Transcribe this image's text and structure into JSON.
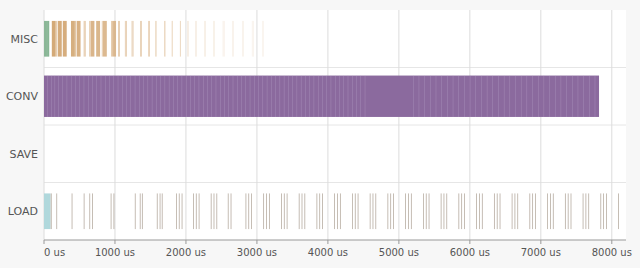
{
  "chart_data": {
    "type": "timeline",
    "orientation": "horizontal",
    "grid": true,
    "categories": [
      "MISC",
      "CONV",
      "SAVE",
      "LOAD"
    ],
    "xlim": [
      0,
      8200
    ],
    "xticks": [
      {
        "value": 0,
        "label": "0 us"
      },
      {
        "value": 1000,
        "label": "1000 us"
      },
      {
        "value": 2000,
        "label": "2000 us"
      },
      {
        "value": 3000,
        "label": "3000 us"
      },
      {
        "value": 4000,
        "label": "4000 us"
      },
      {
        "value": 5000,
        "label": "5000 us"
      },
      {
        "value": 6000,
        "label": "6000 us"
      },
      {
        "value": 7000,
        "label": "7000 us"
      },
      {
        "value": 8000,
        "label": "8000 us"
      }
    ],
    "series": [
      {
        "category": "MISC",
        "color": "#5c9b6e",
        "bars": [
          [
            2,
            8
          ],
          [
            11,
            8
          ],
          [
            20,
            8
          ],
          [
            29,
            8
          ],
          [
            38,
            8
          ],
          [
            47,
            8
          ],
          [
            56,
            8
          ],
          [
            65,
            8
          ]
        ]
      },
      {
        "category": "MISC",
        "color": "#d4aa78",
        "bars": [
          [
            110,
            55
          ],
          [
            175,
            10
          ],
          [
            195,
            55
          ],
          [
            265,
            55
          ],
          [
            380,
            55
          ],
          [
            440,
            10
          ],
          [
            460,
            55
          ],
          [
            560,
            10
          ],
          [
            575,
            10
          ],
          [
            640,
            10
          ],
          [
            655,
            55
          ],
          [
            735,
            55
          ],
          [
            815,
            10
          ],
          [
            830,
            55
          ],
          [
            945,
            10
          ],
          [
            960,
            55
          ],
          [
            1045,
            10
          ],
          [
            1060,
            10
          ],
          [
            1140,
            10
          ],
          [
            1155,
            10
          ],
          [
            1235,
            10
          ],
          [
            1250,
            10
          ],
          [
            1355,
            10
          ],
          [
            1370,
            10
          ],
          [
            1470,
            10
          ],
          [
            1480,
            10
          ],
          [
            1570,
            10
          ],
          [
            1580,
            5
          ],
          [
            1695,
            10
          ],
          [
            1705,
            5
          ],
          [
            1800,
            8
          ],
          [
            1810,
            5
          ],
          [
            1915,
            8
          ],
          [
            1925,
            5
          ],
          [
            2020,
            5
          ],
          [
            2030,
            5
          ],
          [
            2135,
            5
          ],
          [
            2145,
            5
          ],
          [
            2260,
            5
          ],
          [
            2275,
            5
          ],
          [
            2385,
            5
          ],
          [
            2400,
            5
          ],
          [
            2520,
            5
          ],
          [
            2535,
            5
          ],
          [
            2655,
            5
          ],
          [
            2670,
            5
          ],
          [
            2790,
            5
          ],
          [
            2805,
            5
          ],
          [
            2930,
            5
          ],
          [
            2945,
            5
          ],
          [
            3075,
            5
          ],
          [
            3090,
            5
          ]
        ]
      },
      {
        "category": "CONV",
        "color": "#8b6a9e",
        "bars": [
          [
            0,
            7820
          ]
        ]
      },
      {
        "category": "CONV",
        "color": "#c4b0d4",
        "bars": [
          [
            50,
            6
          ],
          [
            100,
            6
          ],
          [
            150,
            6
          ],
          [
            200,
            6
          ],
          [
            260,
            6
          ],
          [
            320,
            6
          ],
          [
            380,
            6
          ],
          [
            440,
            6
          ],
          [
            500,
            6
          ],
          [
            560,
            6
          ],
          [
            620,
            6
          ],
          [
            680,
            6
          ],
          [
            740,
            6
          ],
          [
            800,
            6
          ],
          [
            860,
            6
          ],
          [
            920,
            6
          ],
          [
            980,
            6
          ],
          [
            1040,
            6
          ],
          [
            1100,
            6
          ],
          [
            1160,
            6
          ],
          [
            1220,
            6
          ],
          [
            1280,
            6
          ],
          [
            1340,
            6
          ],
          [
            1400,
            6
          ],
          [
            1460,
            6
          ],
          [
            1520,
            6
          ],
          [
            1580,
            6
          ],
          [
            1640,
            6
          ],
          [
            1700,
            6
          ],
          [
            1760,
            6
          ],
          [
            1820,
            6
          ],
          [
            1880,
            6
          ],
          [
            1940,
            6
          ],
          [
            2000,
            6
          ],
          [
            2060,
            6
          ],
          [
            2120,
            6
          ],
          [
            2180,
            6
          ],
          [
            2240,
            6
          ],
          [
            2300,
            6
          ],
          [
            2360,
            6
          ],
          [
            2420,
            6
          ],
          [
            2480,
            6
          ],
          [
            2540,
            6
          ],
          [
            2600,
            6
          ],
          [
            2660,
            6
          ],
          [
            2720,
            6
          ],
          [
            2780,
            6
          ],
          [
            2840,
            6
          ],
          [
            2900,
            6
          ],
          [
            2960,
            6
          ],
          [
            3020,
            6
          ],
          [
            3080,
            6
          ],
          [
            3140,
            6
          ],
          [
            3200,
            6
          ],
          [
            3260,
            6
          ],
          [
            3320,
            6
          ],
          [
            3380,
            6
          ],
          [
            3440,
            6
          ],
          [
            3500,
            6
          ],
          [
            3560,
            6
          ],
          [
            3620,
            6
          ],
          [
            3680,
            6
          ],
          [
            3740,
            6
          ],
          [
            3800,
            6
          ],
          [
            3860,
            6
          ],
          [
            3920,
            6
          ],
          [
            3980,
            6
          ],
          [
            4040,
            6
          ],
          [
            4100,
            6
          ],
          [
            4160,
            6
          ],
          [
            4220,
            6
          ],
          [
            4280,
            6
          ],
          [
            4340,
            6
          ],
          [
            4400,
            6
          ],
          [
            4460,
            6
          ],
          [
            4520,
            6
          ],
          [
            5200,
            6
          ],
          [
            5280,
            6
          ],
          [
            5360,
            6
          ],
          [
            5440,
            6
          ],
          [
            5520,
            6
          ],
          [
            5600,
            6
          ],
          [
            5680,
            6
          ],
          [
            5760,
            6
          ],
          [
            5840,
            6
          ],
          [
            5920,
            6
          ],
          [
            6000,
            6
          ],
          [
            6080,
            6
          ],
          [
            6160,
            6
          ],
          [
            6240,
            6
          ],
          [
            6320,
            6
          ],
          [
            6400,
            6
          ],
          [
            6480,
            6
          ],
          [
            6560,
            6
          ],
          [
            6640,
            6
          ],
          [
            6720,
            6
          ],
          [
            6800,
            6
          ],
          [
            6880,
            6
          ],
          [
            6960,
            6
          ],
          [
            7040,
            6
          ],
          [
            7120,
            6
          ],
          [
            7200,
            6
          ],
          [
            7280,
            6
          ],
          [
            7360,
            6
          ],
          [
            7440,
            6
          ],
          [
            7520,
            6
          ],
          [
            7600,
            6
          ],
          [
            7680,
            6
          ],
          [
            7760,
            6
          ]
        ]
      },
      {
        "category": "LOAD",
        "color": "#b0d8dc",
        "bars": [
          [
            0,
            90
          ]
        ]
      },
      {
        "category": "LOAD",
        "color": "#6b5540",
        "bars": [
          [
            95,
            12
          ],
          [
            175,
            10
          ],
          [
            390,
            10
          ],
          [
            560,
            10
          ],
          [
            640,
            10
          ],
          [
            680,
            10
          ],
          [
            940,
            10
          ],
          [
            980,
            10
          ],
          [
            1280,
            10
          ],
          [
            1350,
            10
          ],
          [
            1380,
            10
          ],
          [
            1590,
            10
          ],
          [
            1630,
            10
          ],
          [
            1660,
            10
          ],
          [
            1860,
            10
          ],
          [
            1900,
            10
          ],
          [
            1940,
            10
          ],
          [
            2100,
            10
          ],
          [
            2140,
            10
          ],
          [
            2180,
            10
          ],
          [
            2350,
            10
          ],
          [
            2390,
            10
          ],
          [
            2430,
            10
          ],
          [
            2590,
            10
          ],
          [
            2630,
            10
          ],
          [
            2840,
            10
          ],
          [
            2880,
            10
          ],
          [
            2920,
            10
          ],
          [
            3090,
            10
          ],
          [
            3130,
            10
          ],
          [
            3170,
            10
          ],
          [
            3340,
            10
          ],
          [
            3380,
            10
          ],
          [
            3420,
            10
          ],
          [
            3590,
            10
          ],
          [
            3630,
            10
          ],
          [
            3670,
            10
          ],
          [
            3840,
            10
          ],
          [
            3880,
            10
          ],
          [
            3920,
            10
          ],
          [
            4090,
            10
          ],
          [
            4130,
            10
          ],
          [
            4170,
            10
          ],
          [
            4340,
            10
          ],
          [
            4380,
            10
          ],
          [
            4420,
            10
          ],
          [
            4590,
            10
          ],
          [
            4630,
            10
          ],
          [
            4670,
            10
          ],
          [
            4840,
            10
          ],
          [
            4880,
            10
          ],
          [
            4920,
            10
          ],
          [
            5090,
            10
          ],
          [
            5130,
            10
          ],
          [
            5170,
            10
          ],
          [
            5340,
            10
          ],
          [
            5380,
            10
          ],
          [
            5420,
            10
          ],
          [
            5590,
            10
          ],
          [
            5630,
            10
          ],
          [
            5670,
            10
          ],
          [
            5840,
            10
          ],
          [
            5880,
            10
          ],
          [
            5920,
            10
          ],
          [
            6090,
            10
          ],
          [
            6130,
            10
          ],
          [
            6170,
            10
          ],
          [
            6340,
            10
          ],
          [
            6380,
            10
          ],
          [
            6420,
            10
          ],
          [
            6590,
            10
          ],
          [
            6630,
            10
          ],
          [
            6670,
            10
          ],
          [
            6840,
            10
          ],
          [
            6880,
            10
          ],
          [
            6920,
            10
          ],
          [
            7090,
            10
          ],
          [
            7130,
            10
          ],
          [
            7170,
            10
          ],
          [
            7340,
            10
          ],
          [
            7380,
            10
          ],
          [
            7420,
            10
          ],
          [
            7590,
            10
          ],
          [
            7630,
            10
          ],
          [
            7670,
            10
          ],
          [
            7840,
            10
          ],
          [
            7880,
            10
          ],
          [
            7920,
            10
          ],
          [
            8090,
            10
          ]
        ]
      }
    ]
  }
}
